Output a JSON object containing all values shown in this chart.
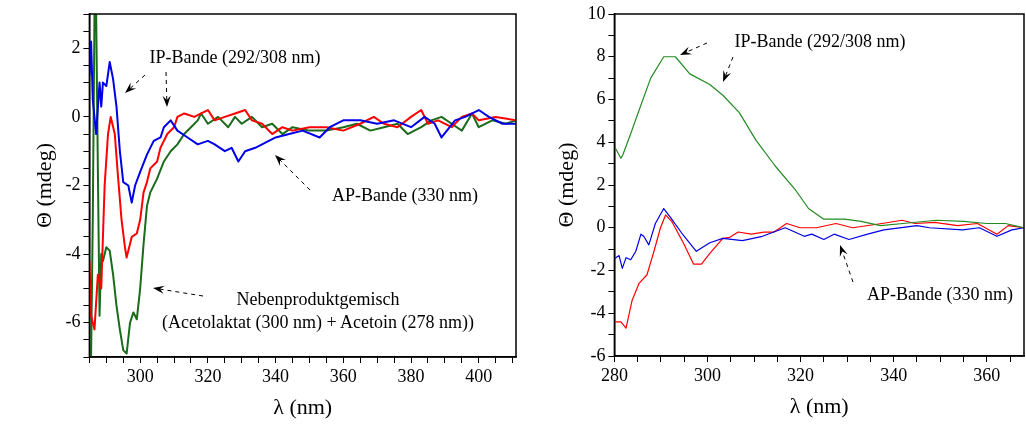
{
  "chart_data": [
    {
      "type": "line",
      "xlabel": "λ (nm)",
      "ylabel": "Θ (mdeg)",
      "xlim": [
        285,
        411
      ],
      "ylim": [
        -7,
        3
      ],
      "xticks": [
        {
          "value": 285,
          "label": null
        },
        {
          "value": 290,
          "label": null
        },
        {
          "value": 295,
          "label": null
        },
        300,
        {
          "value": 305,
          "label": null
        },
        {
          "value": 310,
          "label": null
        },
        {
          "value": 315,
          "label": null
        },
        320,
        {
          "value": 325,
          "label": null
        },
        {
          "value": 330,
          "label": null
        },
        {
          "value": 335,
          "label": null
        },
        340,
        {
          "value": 345,
          "label": null
        },
        {
          "value": 350,
          "label": null
        },
        {
          "value": 355,
          "label": null
        },
        360,
        {
          "value": 365,
          "label": null
        },
        {
          "value": 370,
          "label": null
        },
        {
          "value": 375,
          "label": null
        },
        380,
        {
          "value": 385,
          "label": null
        },
        {
          "value": 390,
          "label": null
        },
        {
          "value": 395,
          "label": null
        },
        400,
        {
          "value": 405,
          "label": null
        },
        {
          "value": 410,
          "label": null
        }
      ],
      "yticks": [
        {
          "value": -7,
          "label": null
        },
        {
          "value": -6.5,
          "label": null
        },
        -6,
        {
          "value": -5.5,
          "label": null
        },
        {
          "value": -5,
          "label": null
        },
        {
          "value": -4.5,
          "label": null
        },
        -4,
        {
          "value": -3.5,
          "label": null
        },
        {
          "value": -3,
          "label": null
        },
        {
          "value": -2.5,
          "label": null
        },
        -2,
        {
          "value": -1.5,
          "label": null
        },
        {
          "value": -1,
          "label": null
        },
        {
          "value": -0.5,
          "label": null
        },
        0,
        {
          "value": 0.5,
          "label": null
        },
        {
          "value": 1,
          "label": null
        },
        {
          "value": 1.5,
          "label": null
        },
        2,
        {
          "value": 2.5,
          "label": null
        },
        {
          "value": 3,
          "label": null
        }
      ],
      "grid": false,
      "legend": false,
      "marker": "none",
      "series": [
        {
          "color": "#0000e6",
          "x": [
            285,
            285.5,
            286,
            287,
            288,
            288.5,
            289,
            290,
            291,
            292,
            293,
            294,
            295,
            296.5,
            297.5,
            298.5,
            300,
            302,
            304,
            306,
            307,
            309,
            311,
            314,
            317,
            320,
            322,
            325,
            327,
            329,
            331,
            334,
            336,
            340,
            344,
            348,
            353,
            356,
            360,
            365,
            370,
            375,
            380,
            384,
            387,
            389,
            393,
            396,
            400,
            403,
            407,
            411
          ],
          "values": [
            1.2,
            2.2,
            0.5,
            -0.5,
            1.0,
            0.3,
            1.0,
            0.9,
            1.6,
            1.1,
            0.3,
            -1.0,
            -1.9,
            -2.0,
            -2.5,
            -2.0,
            -1.6,
            -1.1,
            -0.7,
            -0.6,
            -0.3,
            -0.1,
            -0.4,
            -0.6,
            -0.8,
            -0.7,
            -0.8,
            -1.0,
            -0.9,
            -1.3,
            -1.0,
            -0.9,
            -0.8,
            -0.6,
            -0.5,
            -0.4,
            -0.6,
            -0.3,
            -0.1,
            -0.1,
            -0.2,
            -0.1,
            -0.3,
            0.0,
            -0.2,
            -0.6,
            -0.1,
            0.0,
            0.2,
            0.0,
            -0.2,
            -0.2
          ]
        },
        {
          "color": "#ff0000",
          "x": [
            285,
            285.5,
            286.5,
            287.5,
            288.5,
            289.5,
            290.5,
            291.3,
            292.5,
            293.5,
            294.5,
            295.5,
            296,
            297.5,
            299,
            300,
            301,
            302,
            303,
            305,
            306,
            308,
            310,
            311,
            313,
            316,
            318,
            320,
            322,
            325,
            328,
            331,
            333,
            336,
            339,
            342,
            345,
            350,
            355,
            360,
            365,
            369,
            372,
            376,
            380,
            383,
            385,
            388,
            392,
            395,
            398,
            400,
            405,
            411
          ],
          "values": [
            -4.2,
            -5.8,
            -6.2,
            -4.6,
            -5.0,
            -2.0,
            -0.5,
            0.0,
            -0.5,
            -1.8,
            -3.0,
            -3.8,
            -4.1,
            -3.5,
            -3.4,
            -3.0,
            -2.2,
            -1.9,
            -1.5,
            -1.3,
            -0.9,
            -0.5,
            -0.3,
            0.0,
            0.1,
            0.0,
            0.1,
            0.2,
            -0.1,
            0.0,
            0.1,
            0.2,
            -0.1,
            -0.2,
            -0.5,
            -0.3,
            -0.4,
            -0.3,
            -0.3,
            -0.4,
            -0.2,
            0.0,
            -0.2,
            -0.3,
            0.0,
            0.2,
            -0.2,
            -0.1,
            -0.3,
            0.0,
            0.1,
            -0.1,
            0.0,
            -0.1
          ]
        },
        {
          "color": "#1a6b1a",
          "x": [
            285.5,
            286,
            286.5,
            287,
            287.5,
            288,
            288.5,
            289,
            290,
            291,
            292,
            293,
            294,
            295,
            296,
            297,
            298,
            299,
            300,
            301,
            302,
            303,
            305,
            307,
            309,
            311,
            313,
            315,
            317,
            318,
            320,
            323,
            326,
            328,
            330,
            333,
            336,
            339,
            342,
            345,
            350,
            355,
            360,
            364,
            368,
            372,
            376,
            379,
            383,
            386,
            389,
            392,
            395,
            398,
            400,
            404,
            408,
            411
          ],
          "values": [
            -7,
            -3,
            3,
            3,
            -1.5,
            -5.8,
            -4,
            -4.2,
            -3.8,
            -3.9,
            -4.6,
            -5.5,
            -6.2,
            -6.8,
            -6.9,
            -6.0,
            -5.7,
            -5.9,
            -5.0,
            -3.7,
            -2.6,
            -2.2,
            -1.8,
            -1.3,
            -1.0,
            -0.8,
            -0.5,
            -0.3,
            -0.1,
            0.1,
            -0.2,
            0.0,
            -0.3,
            0.0,
            -0.2,
            0.0,
            -0.3,
            -0.2,
            -0.5,
            -0.3,
            -0.4,
            -0.4,
            -0.3,
            -0.2,
            -0.4,
            -0.3,
            -0.2,
            -0.5,
            -0.3,
            -0.1,
            0.0,
            -0.2,
            -0.4,
            0.1,
            -0.3,
            -0.1,
            -0.2,
            -0.1
          ]
        }
      ],
      "annotations": [
        "IP-Bande (292/308 nm)",
        "AP-Bande (330 nm)",
        "Nebenproduktgemisch\n(Acetolaktat (300 nm) + Acetoin (278 nm))"
      ]
    },
    {
      "type": "line",
      "xlabel": "λ (nm)",
      "ylabel": "Θ (mdeg)",
      "xlim": [
        280,
        368
      ],
      "ylim": [
        -6,
        10
      ],
      "xticks": [
        280,
        {
          "value": 285,
          "label": null
        },
        {
          "value": 290,
          "label": null
        },
        {
          "value": 295,
          "label": null
        },
        300,
        {
          "value": 305,
          "label": null
        },
        {
          "value": 310,
          "label": null
        },
        {
          "value": 315,
          "label": null
        },
        320,
        {
          "value": 325,
          "label": null
        },
        {
          "value": 330,
          "label": null
        },
        {
          "value": 335,
          "label": null
        },
        340,
        {
          "value": 345,
          "label": null
        },
        {
          "value": 350,
          "label": null
        },
        {
          "value": 355,
          "label": null
        },
        360,
        {
          "value": 365,
          "label": null
        }
      ],
      "yticks": [
        -6,
        {
          "value": -5,
          "label": null
        },
        -4,
        {
          "value": -3,
          "label": null
        },
        -2,
        {
          "value": -1,
          "label": null
        },
        0,
        {
          "value": 1,
          "label": null
        },
        2,
        {
          "value": 3,
          "label": null
        },
        4,
        {
          "value": 5,
          "label": null
        },
        6,
        {
          "value": 7,
          "label": null
        },
        8,
        {
          "value": 9,
          "label": null
        },
        10
      ],
      "grid": false,
      "legend": false,
      "marker": "none",
      "series": [
        {
          "color": "#228b22",
          "x": [
            280,
            281.4,
            281.8,
            283.5,
            285.3,
            287.8,
            290.6,
            293.1,
            296.2,
            300.5,
            303.3,
            306.8,
            310.4,
            314.5,
            318.8,
            321.7,
            325,
            329.4,
            333,
            337.2,
            342,
            349.2,
            355,
            360,
            364,
            368
          ],
          "values": [
            3.8,
            3.25,
            3.4,
            4.4,
            5.5,
            7.0,
            8.0,
            8.0,
            7.2,
            6.7,
            6.2,
            5.4,
            4.1,
            2.9,
            1.8,
            0.9,
            0.4,
            0.4,
            0.3,
            0.1,
            0.2,
            0.35,
            0.3,
            0.2,
            0.2,
            0.0
          ]
        },
        {
          "color": "#0000e6",
          "x": [
            280,
            281,
            281.7,
            282.5,
            283.5,
            284.6,
            285.7,
            286.3,
            287.4,
            288.8,
            290.6,
            292,
            294.8,
            297.6,
            300.5,
            303.3,
            307.5,
            311.8,
            316.7,
            320.8,
            322.4,
            325,
            327.2,
            330.4,
            334.4,
            337.9,
            345,
            347.7,
            354.8,
            358.4,
            362.2,
            365.4,
            368
          ],
          "values": [
            -1.45,
            -1.3,
            -1.9,
            -1.4,
            -1.5,
            -1.1,
            -0.3,
            -0.4,
            -0.8,
            0.2,
            0.9,
            0.5,
            -0.35,
            -1.1,
            -0.7,
            -0.5,
            -0.6,
            -0.4,
            0.0,
            -0.4,
            -0.3,
            -0.55,
            -0.3,
            -0.55,
            -0.3,
            -0.1,
            0.1,
            0.0,
            -0.1,
            0.0,
            -0.4,
            -0.1,
            0.0
          ]
        },
        {
          "color": "#ff0000",
          "x": [
            280,
            281.4,
            282.5,
            283.8,
            285.3,
            287,
            288.5,
            289.9,
            291,
            292.3,
            294.8,
            297,
            298.7,
            300.5,
            303.3,
            304.8,
            306.6,
            309.4,
            312.2,
            314.3,
            317,
            319.9,
            323.4,
            327.6,
            331.2,
            337.5,
            341.8,
            344.6,
            348.8,
            353.7,
            358,
            362.2,
            364.6,
            368
          ],
          "values": [
            -4.4,
            -4.4,
            -4.7,
            -3.4,
            -2.6,
            -2.2,
            -1.1,
            0.0,
            0.6,
            0.3,
            -0.7,
            -1.7,
            -1.7,
            -1.2,
            -0.5,
            -0.45,
            -0.2,
            -0.3,
            -0.2,
            -0.2,
            0.2,
            0.0,
            0.0,
            0.2,
            0.0,
            0.2,
            0.35,
            0.2,
            0.25,
            0.1,
            0.2,
            -0.3,
            0.1,
            0.0
          ]
        }
      ],
      "annotations": [
        "IP-Bande (292/308 nm)",
        "AP-Bande (330 nm)"
      ]
    }
  ]
}
